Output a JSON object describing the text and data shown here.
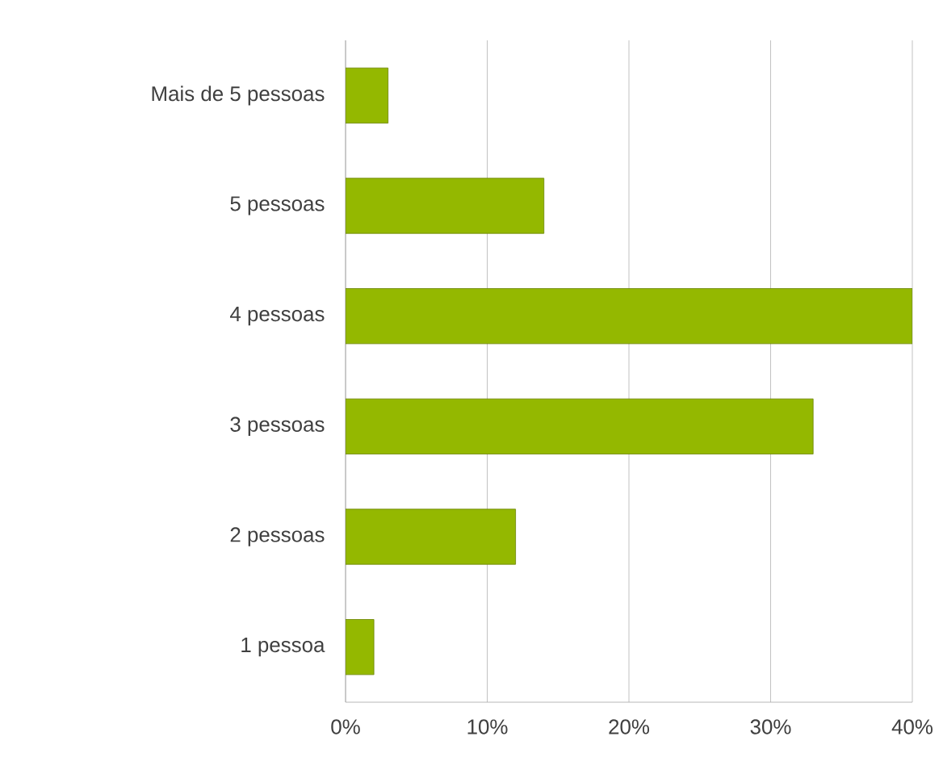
{
  "chart_data": {
    "type": "bar",
    "orientation": "horizontal",
    "categories": [
      "Mais de 5 pessoas",
      "5 pessoas",
      "4 pessoas",
      "3 pessoas",
      "2 pessoas",
      "1 pessoa"
    ],
    "values": [
      3,
      14,
      40,
      33,
      12,
      2
    ],
    "color": "#94b800",
    "xlim": [
      0,
      40
    ],
    "xticks": [
      {
        "value": 0,
        "label": "0%"
      },
      {
        "value": 10,
        "label": "10%"
      },
      {
        "value": 20,
        "label": "20%"
      },
      {
        "value": 30,
        "label": "30%"
      },
      {
        "value": 40,
        "label": "40%"
      }
    ],
    "grid": "x"
  }
}
